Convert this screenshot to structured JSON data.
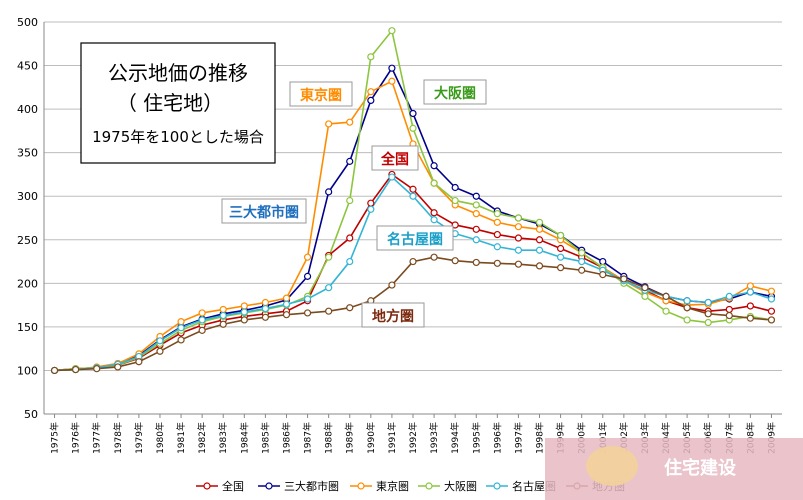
{
  "chart_data": {
    "type": "line",
    "title": "公示地価の推移",
    "subtitle": "（ 住宅地）",
    "note": "1975年を100とした場合",
    "ylim": [
      50,
      500
    ],
    "yticks": [
      50,
      100,
      150,
      200,
      250,
      300,
      350,
      400,
      450,
      500
    ],
    "grid": true,
    "legend_position": "bottom",
    "categories": [
      "1975年",
      "1976年",
      "1977年",
      "1978年",
      "1979年",
      "1980年",
      "1981年",
      "1982年",
      "1983年",
      "1984年",
      "1985年",
      "1986年",
      "1987年",
      "1988年",
      "1989年",
      "1990年",
      "1991年",
      "1992年",
      "1993年",
      "1994年",
      "1995年",
      "1996年",
      "1997年",
      "1998年",
      "1999年",
      "2000年",
      "2001年",
      "2002年",
      "2003年",
      "2004年",
      "2005年",
      "2006年",
      "2007年",
      "2008年",
      "2009年"
    ],
    "series": [
      {
        "name": "全国",
        "color": "#c00000",
        "values": [
          100,
          102,
          103,
          106,
          114,
          129,
          143,
          152,
          158,
          162,
          165,
          168,
          180,
          232,
          252,
          292,
          325,
          308,
          281,
          267,
          262,
          256,
          252,
          250,
          240,
          230,
          218,
          203,
          192,
          180,
          172,
          168,
          170,
          174,
          168
        ]
      },
      {
        "name": "三大都市圏",
        "color": "#00008b",
        "values": [
          100,
          101,
          103,
          107,
          117,
          135,
          150,
          159,
          165,
          169,
          174,
          181,
          208,
          305,
          340,
          410,
          447,
          395,
          335,
          310,
          300,
          283,
          275,
          268,
          255,
          238,
          225,
          208,
          196,
          185,
          180,
          178,
          182,
          190,
          185
        ]
      },
      {
        "name": "東京圏",
        "color": "#ff8c00",
        "values": [
          100,
          101,
          104,
          108,
          119,
          139,
          156,
          166,
          170,
          174,
          178,
          183,
          230,
          383,
          385,
          420,
          432,
          360,
          315,
          290,
          280,
          270,
          265,
          262,
          250,
          235,
          218,
          203,
          190,
          180,
          175,
          176,
          183,
          197,
          191
        ]
      },
      {
        "name": "大阪圏",
        "color": "#8cc63f",
        "values": [
          100,
          102,
          103,
          106,
          115,
          131,
          146,
          156,
          162,
          166,
          170,
          175,
          185,
          230,
          295,
          460,
          490,
          378,
          315,
          295,
          290,
          280,
          275,
          270,
          255,
          235,
          218,
          200,
          185,
          168,
          158,
          155,
          158,
          162,
          158
        ]
      },
      {
        "name": "名古屋圏",
        "color": "#33b5d5",
        "values": [
          100,
          101,
          103,
          107,
          116,
          134,
          149,
          158,
          163,
          167,
          171,
          176,
          182,
          195,
          225,
          285,
          322,
          300,
          273,
          257,
          250,
          242,
          238,
          238,
          230,
          225,
          215,
          203,
          192,
          185,
          180,
          178,
          185,
          190,
          182
        ]
      },
      {
        "name": "地方圏",
        "color": "#7b4a1e",
        "values": [
          100,
          101,
          102,
          104,
          110,
          122,
          135,
          146,
          153,
          158,
          161,
          164,
          166,
          168,
          172,
          180,
          198,
          225,
          230,
          226,
          224,
          223,
          222,
          220,
          218,
          215,
          210,
          205,
          195,
          185,
          172,
          165,
          163,
          160,
          158
        ]
      }
    ],
    "annotations": [
      {
        "text": "東京圏",
        "color": "#ff8c00"
      },
      {
        "text": "大阪圏",
        "color": "#3a9a1a"
      },
      {
        "text": "全国",
        "color": "#c00000"
      },
      {
        "text": "三大都市圏",
        "color": "#1f6fbf"
      },
      {
        "text": "名古屋圏",
        "color": "#1aa0c8"
      },
      {
        "text": "地方圏",
        "color": "#7b2a10"
      }
    ]
  },
  "watermark": "住宅建设"
}
